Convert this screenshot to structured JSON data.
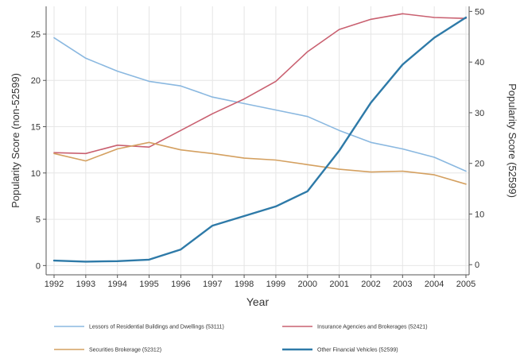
{
  "chart_data": {
    "type": "line",
    "xlabel": "Year",
    "ylabel_left": "Popularity Score (non-52599)",
    "ylabel_right": "Popularity Score (52599)",
    "x": [
      1992,
      1993,
      1994,
      1995,
      1996,
      1997,
      1998,
      1999,
      2000,
      2001,
      2002,
      2003,
      2004,
      2005
    ],
    "ylim_left": [
      -1,
      28
    ],
    "ylim_right": [
      -2,
      51
    ],
    "yticks_left": [
      0,
      5,
      10,
      15,
      20,
      25
    ],
    "yticks_right": [
      0,
      10,
      20,
      30,
      40,
      50
    ],
    "grid": true,
    "legend_position": "bottom",
    "series": [
      {
        "name": "Lessors of Residential Buildings and Dwellings (53111)",
        "axis": "left",
        "color": "#8ab8e0",
        "values": [
          24.6,
          22.4,
          21.0,
          19.9,
          19.4,
          18.2,
          17.5,
          16.8,
          16.1,
          14.6,
          13.3,
          12.6,
          11.7,
          10.2
        ]
      },
      {
        "name": "Insurance Agencies and Brokerages (52421)",
        "axis": "left",
        "color": "#c96070",
        "values": [
          12.2,
          12.1,
          13.0,
          12.8,
          14.6,
          16.4,
          18.0,
          19.9,
          23.1,
          25.5,
          26.6,
          27.2,
          26.8,
          26.7
        ]
      },
      {
        "name": "Securities Brokerage (52312)",
        "axis": "left",
        "color": "#d4a060",
        "values": [
          12.1,
          11.3,
          12.6,
          13.3,
          12.5,
          12.1,
          11.6,
          11.4,
          10.9,
          10.4,
          10.1,
          10.2,
          9.8,
          8.8
        ]
      },
      {
        "name": "Other Financial Vehicles (52599)",
        "axis": "right",
        "color": "#2e7aa8",
        "values": [
          0.8,
          0.6,
          0.7,
          1.0,
          3.0,
          7.7,
          9.6,
          11.5,
          14.5,
          22.5,
          32.0,
          39.5,
          44.8,
          48.8
        ]
      }
    ]
  }
}
